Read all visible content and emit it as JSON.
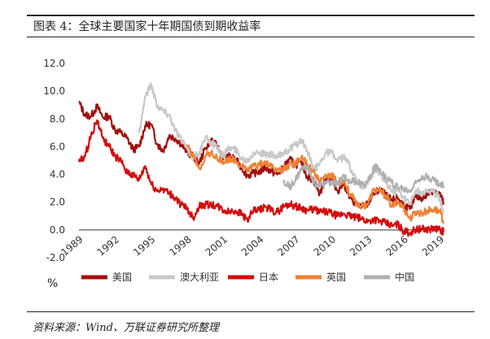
{
  "header": {
    "title": "图表 4：全球主要国家十年期国债到期收益率"
  },
  "footer": {
    "source": "资料来源：Wind、万联证券研究所整理"
  },
  "chart_data": {
    "type": "line",
    "title": "图表 4：全球主要国家十年期国债到期收益率",
    "ylabel": "%",
    "xlabel": "",
    "ylim": [
      -2.0,
      12.0
    ],
    "xlim": [
      1989,
      2019.3
    ],
    "yticks": [
      -2.0,
      0.0,
      2.0,
      4.0,
      6.0,
      8.0,
      10.0,
      12.0
    ],
    "ytick_labels": [
      "-2.0",
      "0.0",
      "2.0",
      "4.0",
      "6.0",
      "8.0",
      "10.0",
      "12.0"
    ],
    "xticks": [
      1989,
      1992,
      1995,
      1998,
      2001,
      2004,
      2007,
      2010,
      2013,
      2016,
      2019
    ],
    "xtick_labels": [
      "1989",
      "1992",
      "1995",
      "1998",
      "2001",
      "2004",
      "2007",
      "2010",
      "2013",
      "2016",
      "2019"
    ],
    "grid": false,
    "legend_position": "bottom",
    "series": [
      {
        "name": "美国",
        "color": "#a30f0f",
        "x": [
          1989.0,
          1989.5,
          1990.0,
          1990.5,
          1991.0,
          1991.5,
          1992.0,
          1992.5,
          1993.0,
          1993.5,
          1994.0,
          1994.5,
          1995.0,
          1995.5,
          1996.0,
          1996.5,
          1997.0,
          1997.5,
          1998.0,
          1998.5,
          1999.0,
          1999.5,
          2000.0,
          2000.5,
          2001.0,
          2001.5,
          2002.0,
          2002.5,
          2003.0,
          2003.5,
          2004.0,
          2004.5,
          2005.0,
          2005.5,
          2006.0,
          2006.5,
          2007.0,
          2007.5,
          2008.0,
          2008.5,
          2009.0,
          2009.5,
          2010.0,
          2010.5,
          2011.0,
          2011.5,
          2012.0,
          2012.5,
          2013.0,
          2013.5,
          2014.0,
          2014.5,
          2015.0,
          2015.5,
          2016.0,
          2016.5,
          2017.0,
          2017.5,
          2018.0,
          2018.5,
          2019.0,
          2019.3
        ],
        "values": [
          9.2,
          8.3,
          8.2,
          8.9,
          8.1,
          8.2,
          7.2,
          7.0,
          6.6,
          5.8,
          6.0,
          7.5,
          7.6,
          6.2,
          5.7,
          6.8,
          6.6,
          6.2,
          5.6,
          5.3,
          4.8,
          5.9,
          6.5,
          6.0,
          5.2,
          5.3,
          5.1,
          4.5,
          3.9,
          4.1,
          4.2,
          4.5,
          4.2,
          4.0,
          4.5,
          5.1,
          4.7,
          4.8,
          3.8,
          3.6,
          2.6,
          3.7,
          3.7,
          2.8,
          3.4,
          2.3,
          1.9,
          1.6,
          1.9,
          2.6,
          2.9,
          2.5,
          2.1,
          2.3,
          1.8,
          1.5,
          2.4,
          2.3,
          2.6,
          2.9,
          2.6,
          1.9
        ]
      },
      {
        "name": "澳大利亚",
        "color": "#c8c8c8",
        "x": [
          1994.0,
          1994.5,
          1995.0,
          1995.5,
          1996.0,
          1996.5,
          1997.0,
          1997.5,
          1998.0,
          1998.5,
          1999.0,
          1999.5,
          2000.0,
          2000.5,
          2001.0,
          2001.5,
          2002.0,
          2002.5,
          2003.0,
          2003.5,
          2004.0,
          2004.5,
          2005.0,
          2005.5,
          2006.0,
          2006.5,
          2007.0,
          2007.5,
          2008.0,
          2008.5,
          2009.0,
          2009.5,
          2010.0,
          2010.5,
          2011.0,
          2011.5,
          2012.0,
          2012.5,
          2013.0,
          2013.5,
          2014.0,
          2014.5,
          2015.0,
          2015.5,
          2016.0,
          2016.5,
          2017.0,
          2017.5,
          2018.0,
          2018.5,
          2019.0,
          2019.3
        ],
        "values": [
          7.0,
          9.6,
          10.5,
          9.0,
          8.6,
          8.3,
          7.2,
          6.5,
          5.8,
          5.2,
          5.6,
          6.6,
          6.3,
          5.9,
          5.4,
          5.9,
          5.8,
          5.2,
          5.0,
          5.6,
          5.6,
          5.4,
          5.4,
          5.2,
          5.6,
          5.8,
          6.1,
          6.5,
          5.6,
          4.3,
          4.8,
          5.6,
          5.6,
          4.9,
          5.3,
          4.6,
          3.6,
          3.1,
          3.3,
          4.1,
          4.1,
          3.4,
          2.8,
          2.9,
          2.4,
          1.9,
          2.8,
          2.7,
          2.9,
          2.7,
          2.3,
          1.3
        ]
      },
      {
        "name": "日本",
        "color": "#d40d0d",
        "x": [
          1989.0,
          1989.5,
          1990.0,
          1990.5,
          1991.0,
          1991.5,
          1992.0,
          1992.5,
          1993.0,
          1993.5,
          1994.0,
          1994.5,
          1995.0,
          1995.5,
          1996.0,
          1996.5,
          1997.0,
          1997.5,
          1998.0,
          1998.5,
          1999.0,
          1999.5,
          2000.0,
          2000.5,
          2001.0,
          2001.5,
          2002.0,
          2002.5,
          2003.0,
          2003.5,
          2004.0,
          2004.5,
          2005.0,
          2005.5,
          2006.0,
          2006.5,
          2007.0,
          2007.5,
          2008.0,
          2008.5,
          2009.0,
          2009.5,
          2010.0,
          2010.5,
          2011.0,
          2011.5,
          2012.0,
          2012.5,
          2013.0,
          2013.5,
          2014.0,
          2014.5,
          2015.0,
          2015.5,
          2016.0,
          2016.5,
          2017.0,
          2017.5,
          2018.0,
          2018.5,
          2019.0,
          2019.3
        ],
        "values": [
          4.9,
          5.3,
          6.8,
          7.9,
          6.6,
          6.0,
          5.3,
          4.9,
          4.2,
          3.9,
          3.6,
          4.6,
          3.3,
          2.8,
          3.0,
          2.6,
          2.3,
          1.8,
          1.5,
          0.9,
          1.7,
          1.8,
          1.8,
          1.7,
          1.4,
          1.3,
          1.4,
          1.2,
          0.7,
          1.4,
          1.4,
          1.7,
          1.4,
          1.3,
          1.7,
          1.9,
          1.7,
          1.6,
          1.4,
          1.5,
          1.3,
          1.3,
          1.2,
          1.0,
          1.2,
          1.0,
          0.9,
          0.8,
          0.6,
          0.8,
          0.6,
          0.5,
          0.3,
          0.4,
          -0.1,
          -0.2,
          0.05,
          0.05,
          0.05,
          0.1,
          0.0,
          -0.1
        ]
      },
      {
        "name": "英国",
        "color": "#ee8133",
        "x": [
          1998.0,
          1998.5,
          1999.0,
          1999.5,
          2000.0,
          2000.5,
          2001.0,
          2001.5,
          2002.0,
          2002.5,
          2003.0,
          2003.5,
          2004.0,
          2004.5,
          2005.0,
          2005.5,
          2006.0,
          2006.5,
          2007.0,
          2007.5,
          2008.0,
          2008.5,
          2009.0,
          2009.5,
          2010.0,
          2010.5,
          2011.0,
          2011.5,
          2012.0,
          2012.5,
          2013.0,
          2013.5,
          2014.0,
          2014.5,
          2015.0,
          2015.5,
          2016.0,
          2016.5,
          2017.0,
          2017.5,
          2018.0,
          2018.5,
          2019.0,
          2019.3
        ],
        "values": [
          6.0,
          5.3,
          4.4,
          5.3,
          5.6,
          5.1,
          4.9,
          5.1,
          5.0,
          4.6,
          4.3,
          4.6,
          4.7,
          4.9,
          4.5,
          4.3,
          4.4,
          4.7,
          4.8,
          5.3,
          4.6,
          4.3,
          3.4,
          3.8,
          3.9,
          3.4,
          3.6,
          2.6,
          2.0,
          1.7,
          1.9,
          2.9,
          2.8,
          2.5,
          1.7,
          2.0,
          1.6,
          0.8,
          1.3,
          1.2,
          1.4,
          1.5,
          1.3,
          0.6
        ]
      },
      {
        "name": "中国",
        "color": "#b0b0b0",
        "x": [
          2006.0,
          2006.5,
          2007.0,
          2007.5,
          2008.0,
          2008.5,
          2009.0,
          2009.5,
          2010.0,
          2010.5,
          2011.0,
          2011.5,
          2012.0,
          2012.5,
          2013.0,
          2013.5,
          2014.0,
          2014.5,
          2015.0,
          2015.5,
          2016.0,
          2016.5,
          2017.0,
          2017.5,
          2018.0,
          2018.5,
          2019.0,
          2019.3
        ],
        "values": [
          3.4,
          3.1,
          3.6,
          4.4,
          4.5,
          3.4,
          3.1,
          3.5,
          3.3,
          3.3,
          3.9,
          3.5,
          3.5,
          3.3,
          3.5,
          4.5,
          4.4,
          3.8,
          3.4,
          3.1,
          2.9,
          2.8,
          3.4,
          3.9,
          3.8,
          3.6,
          3.2,
          3.2
        ]
      }
    ]
  }
}
